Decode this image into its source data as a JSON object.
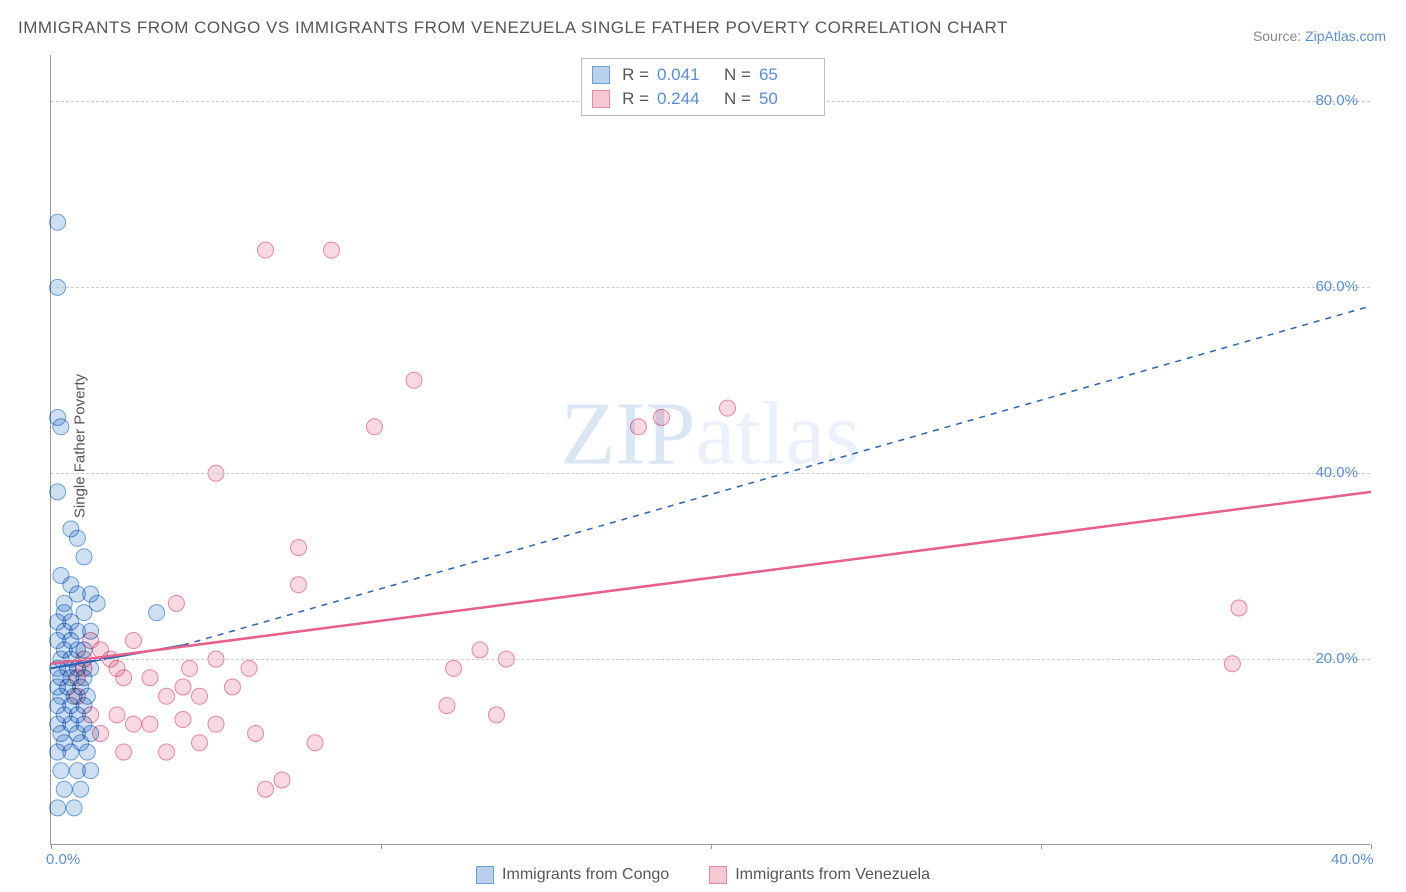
{
  "title": "IMMIGRANTS FROM CONGO VS IMMIGRANTS FROM VENEZUELA SINGLE FATHER POVERTY CORRELATION CHART",
  "source_label": "Source: ",
  "source_site": "ZipAtlas.com",
  "ylabel": "Single Father Poverty",
  "watermark": {
    "bold": "ZIP",
    "light": "atlas"
  },
  "chart": {
    "type": "scatter",
    "xlim": [
      0,
      40
    ],
    "ylim": [
      0,
      85
    ],
    "x_ticks": [
      0,
      10,
      20,
      30,
      40
    ],
    "y_ticks": [
      20,
      40,
      60,
      80
    ],
    "x_tick_labels": [
      "0.0%",
      "",
      "",
      "",
      "40.0%"
    ],
    "y_tick_labels": [
      "20.0%",
      "40.0%",
      "60.0%",
      "80.0%"
    ],
    "background_color": "#ffffff",
    "grid_color": "#d0d0d0",
    "tick_color": "#5b8dd6",
    "series": [
      {
        "name": "Immigrants from Congo",
        "color_fill": "#b9d1ec",
        "color_stroke": "#6a9fd8",
        "r_value": "0.041",
        "n_value": "65",
        "marker_radius": 8,
        "trend": {
          "x1": 0,
          "y1": 19.0,
          "x2": 4.0,
          "y2": 21.5,
          "dash_x1": 4.0,
          "dash_y1": 21.5,
          "dash_x2": 40,
          "dash_y2": 58,
          "stroke": "#2a62b8",
          "width": 2
        },
        "points": [
          [
            0.2,
            67
          ],
          [
            0.2,
            60
          ],
          [
            0.2,
            46
          ],
          [
            0.3,
            45
          ],
          [
            0.2,
            38
          ],
          [
            0.6,
            34
          ],
          [
            0.8,
            33
          ],
          [
            1.0,
            31
          ],
          [
            0.3,
            29
          ],
          [
            0.6,
            28
          ],
          [
            0.8,
            27
          ],
          [
            1.2,
            27
          ],
          [
            0.4,
            26
          ],
          [
            1.4,
            26
          ],
          [
            0.4,
            25
          ],
          [
            1.0,
            25
          ],
          [
            3.2,
            25
          ],
          [
            0.2,
            24
          ],
          [
            0.6,
            24
          ],
          [
            0.4,
            23
          ],
          [
            0.8,
            23
          ],
          [
            1.2,
            23
          ],
          [
            0.2,
            22
          ],
          [
            0.6,
            22
          ],
          [
            0.4,
            21
          ],
          [
            0.8,
            21
          ],
          [
            1.0,
            21
          ],
          [
            0.3,
            20
          ],
          [
            0.6,
            20
          ],
          [
            0.2,
            19
          ],
          [
            0.5,
            19
          ],
          [
            0.8,
            19
          ],
          [
            1.2,
            19
          ],
          [
            0.3,
            18
          ],
          [
            0.6,
            18
          ],
          [
            1.0,
            18
          ],
          [
            0.2,
            17
          ],
          [
            0.5,
            17
          ],
          [
            0.9,
            17
          ],
          [
            0.3,
            16
          ],
          [
            0.7,
            16
          ],
          [
            1.1,
            16
          ],
          [
            0.2,
            15
          ],
          [
            0.6,
            15
          ],
          [
            1.0,
            15
          ],
          [
            0.4,
            14
          ],
          [
            0.8,
            14
          ],
          [
            0.2,
            13
          ],
          [
            0.6,
            13
          ],
          [
            1.0,
            13
          ],
          [
            0.3,
            12
          ],
          [
            0.8,
            12
          ],
          [
            1.2,
            12
          ],
          [
            0.4,
            11
          ],
          [
            0.9,
            11
          ],
          [
            0.2,
            10
          ],
          [
            0.6,
            10
          ],
          [
            1.1,
            10
          ],
          [
            0.3,
            8
          ],
          [
            0.8,
            8
          ],
          [
            1.2,
            8
          ],
          [
            0.4,
            6
          ],
          [
            0.9,
            6
          ],
          [
            0.2,
            4
          ],
          [
            0.7,
            4
          ]
        ]
      },
      {
        "name": "Immigrants from Venezuela",
        "color_fill": "#f5c9d4",
        "color_stroke": "#e886a3",
        "r_value": "0.244",
        "n_value": "50",
        "marker_radius": 8,
        "trend": {
          "x1": 0,
          "y1": 19.5,
          "x2": 40,
          "y2": 38,
          "stroke": "#e85f8a",
          "width": 2.5
        },
        "points": [
          [
            6.5,
            64
          ],
          [
            8.5,
            64
          ],
          [
            11.0,
            50
          ],
          [
            9.8,
            45
          ],
          [
            20.5,
            47
          ],
          [
            18.5,
            46
          ],
          [
            17.8,
            45
          ],
          [
            5.0,
            40
          ],
          [
            7.5,
            32
          ],
          [
            36.0,
            25.5
          ],
          [
            35.8,
            19.5
          ],
          [
            13.0,
            21
          ],
          [
            13.8,
            20
          ],
          [
            12.2,
            19
          ],
          [
            5.0,
            20
          ],
          [
            4.2,
            19
          ],
          [
            6.0,
            19
          ],
          [
            3.0,
            18
          ],
          [
            4.0,
            17
          ],
          [
            5.5,
            17
          ],
          [
            3.5,
            16
          ],
          [
            4.5,
            16
          ],
          [
            7.5,
            28
          ],
          [
            3.8,
            26
          ],
          [
            2.0,
            19
          ],
          [
            2.2,
            18
          ],
          [
            1.5,
            21
          ],
          [
            1.8,
            20
          ],
          [
            1.0,
            19
          ],
          [
            3.0,
            13
          ],
          [
            5.0,
            13
          ],
          [
            7.0,
            7
          ],
          [
            6.5,
            6
          ],
          [
            4.0,
            13.5
          ],
          [
            2.0,
            14
          ],
          [
            2.5,
            13
          ],
          [
            6.2,
            12
          ],
          [
            8.0,
            11
          ],
          [
            4.5,
            11
          ],
          [
            3.5,
            10
          ],
          [
            2.2,
            10
          ],
          [
            1.5,
            12
          ],
          [
            1.2,
            14
          ],
          [
            0.8,
            16
          ],
          [
            0.8,
            18
          ],
          [
            1.0,
            20
          ],
          [
            12.0,
            15
          ],
          [
            13.5,
            14
          ],
          [
            1.2,
            22
          ],
          [
            2.5,
            22
          ]
        ]
      }
    ]
  },
  "legend": {
    "r_label": "R =",
    "n_label": "N =",
    "series1_label": "Immigrants from Congo",
    "series2_label": "Immigrants from Venezuela"
  }
}
